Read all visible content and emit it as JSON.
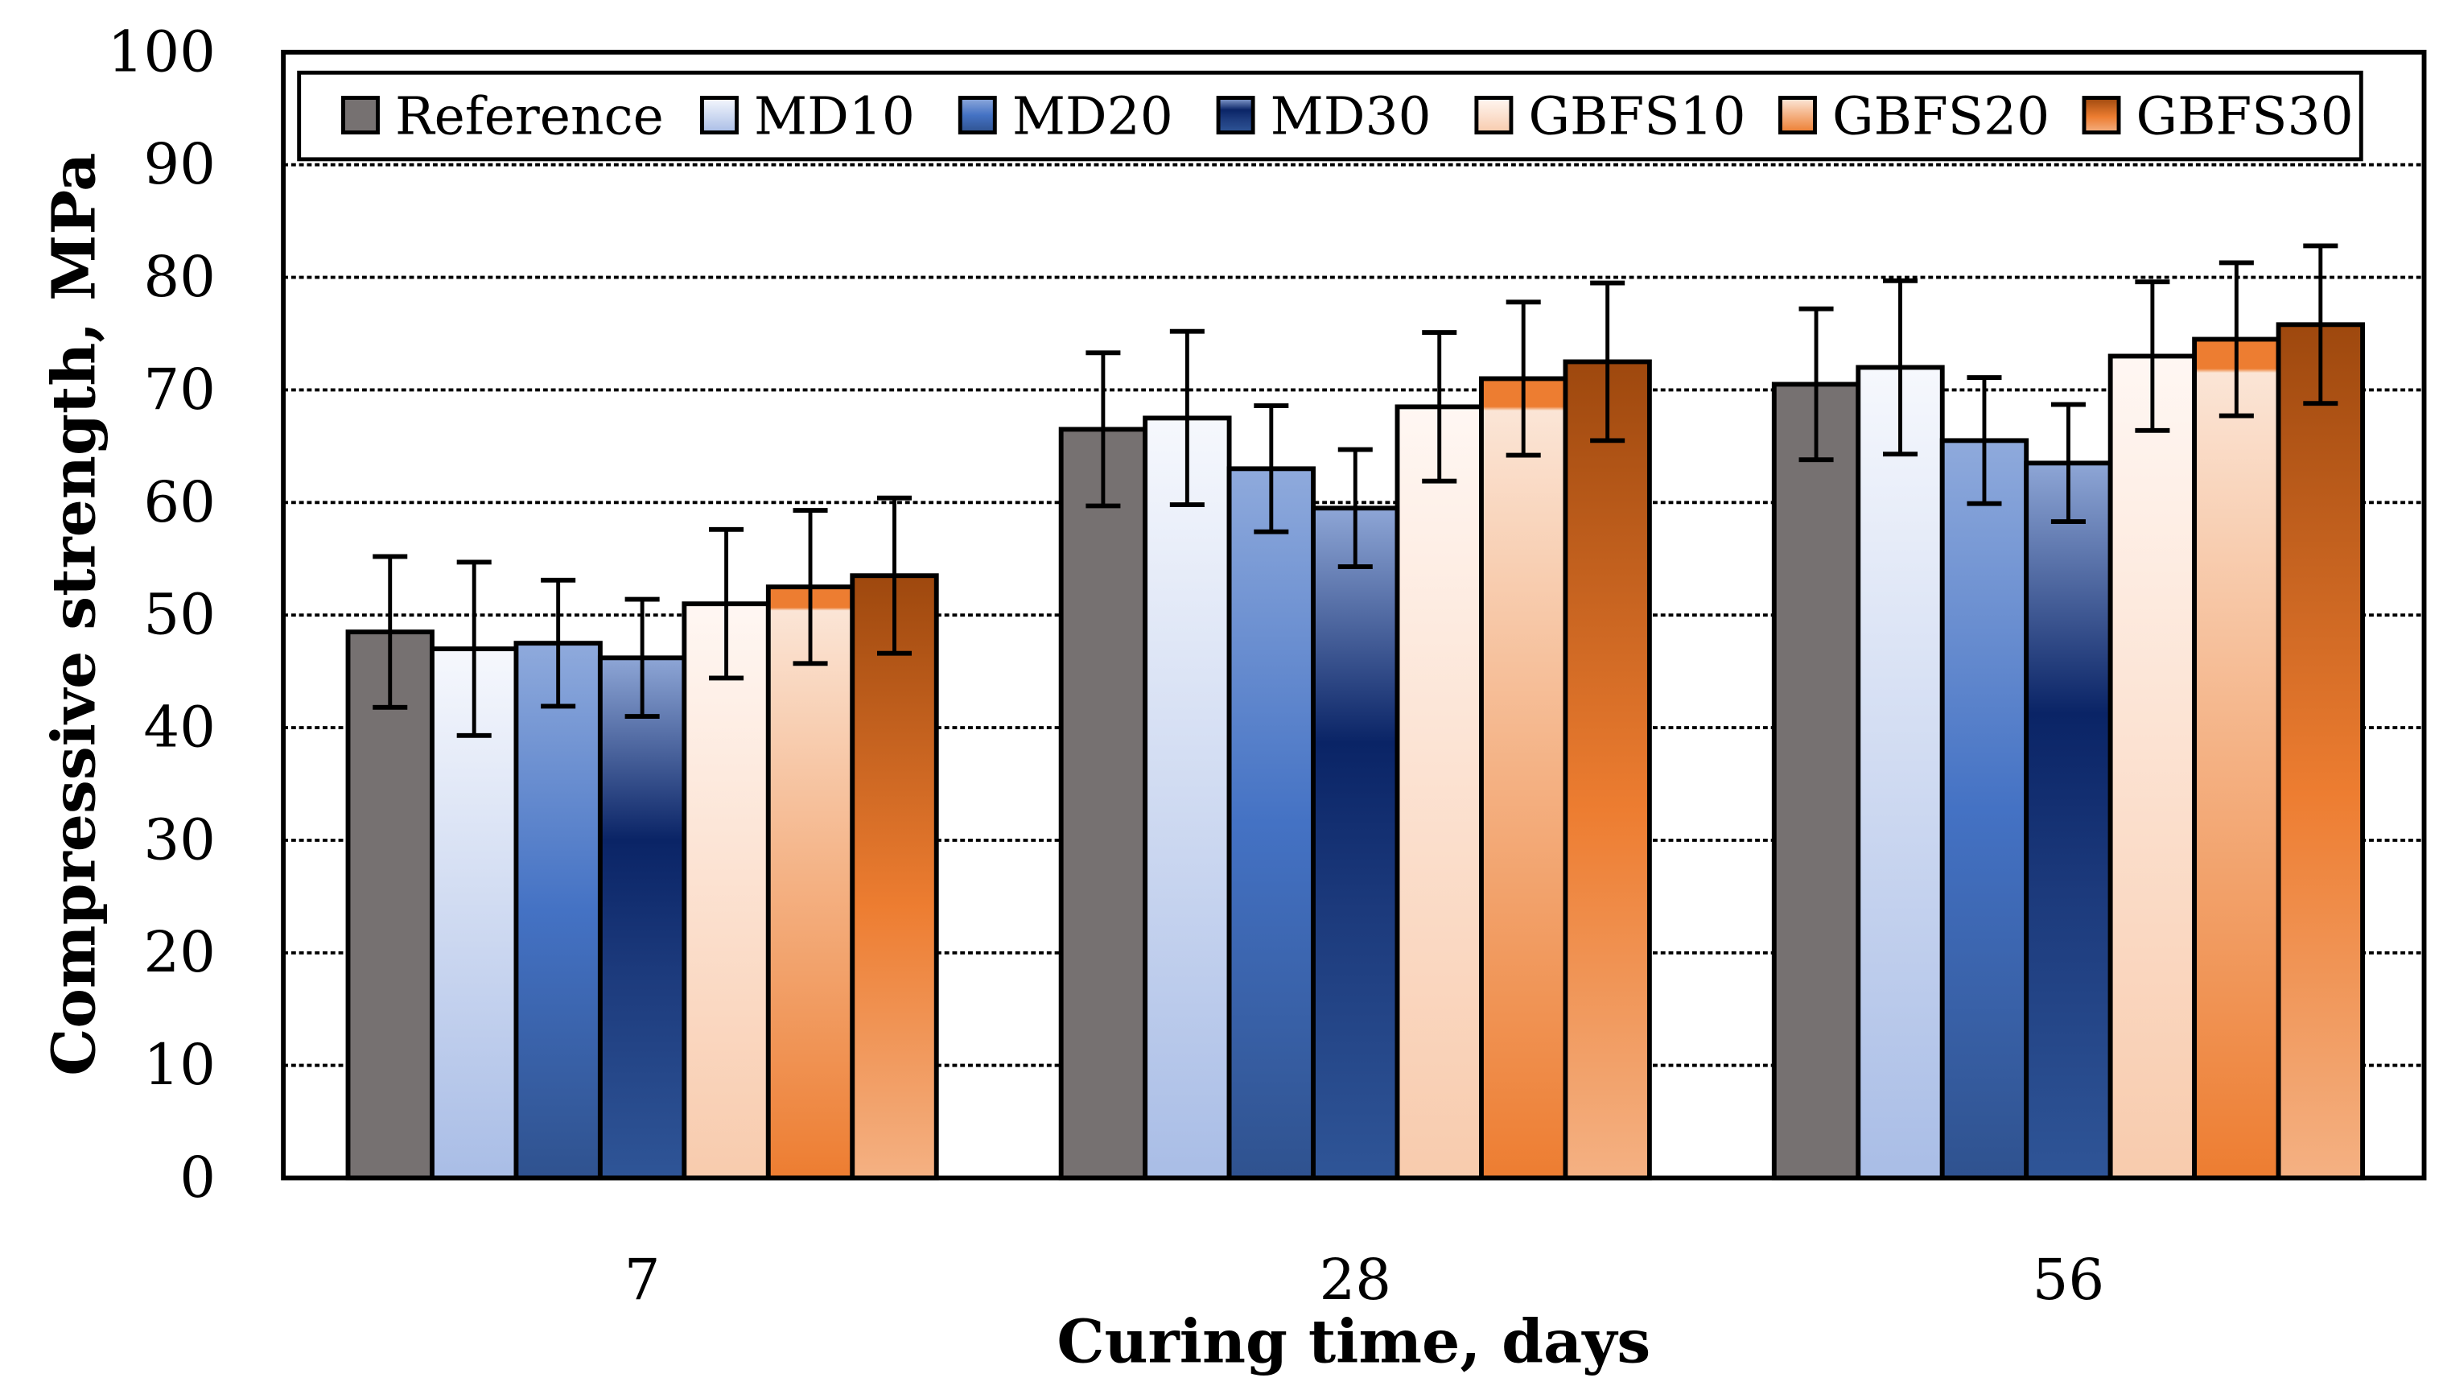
{
  "chart_data": {
    "type": "bar",
    "title": "",
    "xlabel": "Curing time, days",
    "ylabel": "Compressive strength, MPa",
    "ylim": [
      0,
      100
    ],
    "yticks": [
      "0",
      "10",
      "20",
      "30",
      "40",
      "50",
      "60",
      "70",
      "80",
      "90",
      "100"
    ],
    "grid": true,
    "legend_position": "top",
    "categories": [
      "7",
      "28",
      "56"
    ],
    "series": [
      {
        "name": "Reference",
        "values": [
          48.5,
          66.5,
          70.5
        ],
        "errors": [
          6.7,
          6.8,
          6.7
        ],
        "color": "#767171"
      },
      {
        "name": "MD10",
        "values": [
          47.0,
          67.5,
          72.0
        ],
        "errors": [
          7.7,
          7.7,
          7.7
        ],
        "color": "#dae3f3"
      },
      {
        "name": "MD20",
        "values": [
          47.5,
          63.0,
          65.5
        ],
        "errors": [
          5.6,
          5.6,
          5.6
        ],
        "color": "#4472c4"
      },
      {
        "name": "MD30",
        "values": [
          46.2,
          59.5,
          63.5
        ],
        "errors": [
          5.2,
          5.2,
          5.2
        ],
        "color": "#002060"
      },
      {
        "name": "GBFS10",
        "values": [
          51.0,
          68.5,
          73.0
        ],
        "errors": [
          6.6,
          6.6,
          6.6
        ],
        "color": "#fbe5d6"
      },
      {
        "name": "GBFS20",
        "values": [
          52.5,
          71.0,
          74.5
        ],
        "errors": [
          6.8,
          6.8,
          6.8
        ],
        "color": "#f4b183"
      },
      {
        "name": "GBFS30",
        "values": [
          53.5,
          72.5,
          75.8
        ],
        "errors": [
          6.9,
          7.0,
          7.0
        ],
        "color": "#c55a11"
      }
    ]
  }
}
